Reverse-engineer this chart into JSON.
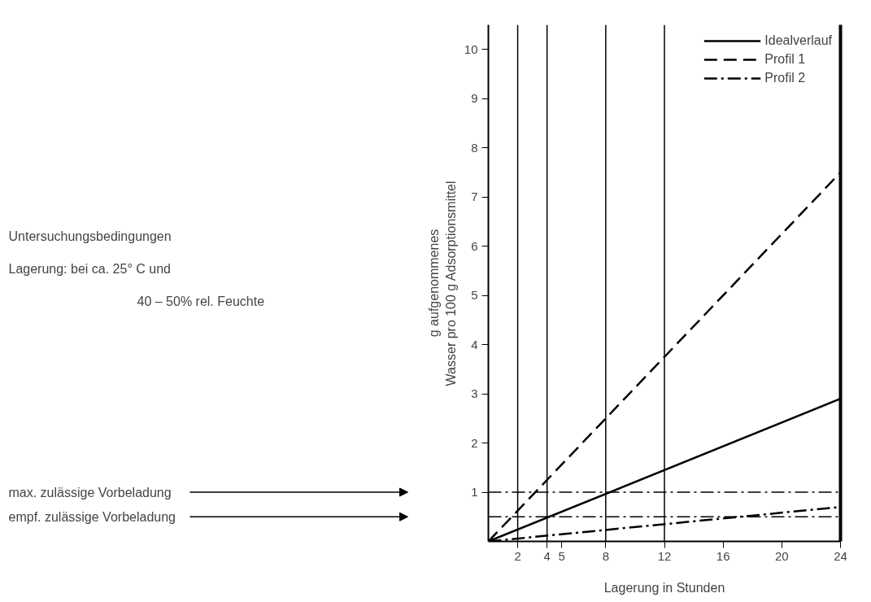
{
  "chart_data": {
    "type": "line",
    "xlabel": "Lagerung in Stunden",
    "ylabel": "g aufgenommenes\nWasser pro 100 g Adsorptionsmittel",
    "x": [
      0,
      24
    ],
    "series": [
      {
        "name": "Idealverlauf",
        "color": "#000000",
        "values": [
          0,
          2.9
        ],
        "line_style": "solid"
      },
      {
        "name": "Profil 1",
        "color": "#000000",
        "values": [
          0,
          7.5
        ],
        "line_style": "dashed"
      },
      {
        "name": "Profil 2",
        "color": "#000000",
        "values": [
          0,
          0.7
        ],
        "line_style": "dashdot"
      }
    ],
    "xlim": [
      0,
      24
    ],
    "ylim": [
      0,
      10.5
    ],
    "xticks": [
      2,
      4,
      5,
      8,
      12,
      16,
      20,
      24
    ],
    "yticks": [
      1,
      2,
      3,
      4,
      5,
      6,
      7,
      8,
      9,
      10
    ],
    "ref_lines": [
      {
        "axis": "y",
        "value": 1,
        "label": null,
        "line_style": "dashdot"
      },
      {
        "axis": "y",
        "value": 0.5,
        "label": null,
        "line_style": "dashdot"
      },
      {
        "axis": "x",
        "value": 2,
        "label": null,
        "line_style": "solid"
      },
      {
        "axis": "x",
        "value": 4,
        "label": null,
        "line_style": "solid"
      },
      {
        "axis": "x",
        "value": 8,
        "label": null,
        "line_style": "solid"
      },
      {
        "axis": "x",
        "value": 12,
        "label": null,
        "line_style": "solid"
      }
    ],
    "annotations": [
      "Untersuchungsbedingungen",
      "Lagerung: bei ca. 25° C und",
      "40 – 50% rel. Feuchte",
      "max. zulässige Vorbeladung",
      "empf. zulässige Vorbeladung"
    ],
    "grid": false,
    "legend": "top right",
    "marker": "none"
  }
}
